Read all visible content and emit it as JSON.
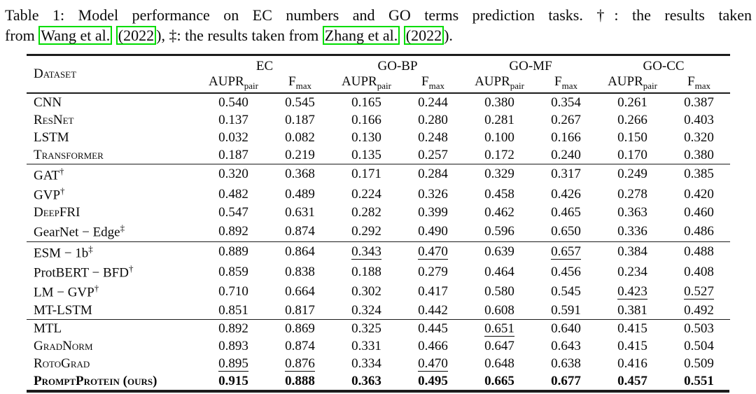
{
  "caption": {
    "line1": "Table 1: Model performance on EC numbers and GO terms prediction tasks. †: the results taken",
    "line2_pre": "from ",
    "cite1": "Wang et al.",
    "cite1_year": "(2022",
    "line2_mid": "), ‡: the results taken from ",
    "cite2": "Zhang et al.",
    "cite2_year": "(2022",
    "line2_end": ")."
  },
  "table": {
    "dataset_header": "Dataset",
    "col_groups": [
      {
        "label": "EC"
      },
      {
        "label": "GO-BP"
      },
      {
        "label": "GO-MF"
      },
      {
        "label": "GO-CC"
      }
    ],
    "metrics": {
      "aupr": "AUPR",
      "aupr_sub": "pair",
      "fmax": "F",
      "fmax_sub": "max"
    },
    "groups": [
      {
        "rows": [
          {
            "label": "CNN",
            "sc": true,
            "sup": "",
            "bold": false,
            "underline": [],
            "values": [
              "0.540",
              "0.545",
              "0.165",
              "0.244",
              "0.380",
              "0.354",
              "0.261",
              "0.387"
            ]
          },
          {
            "label": "ResNet",
            "sc": true,
            "sup": "",
            "bold": false,
            "underline": [],
            "values": [
              "0.137",
              "0.187",
              "0.166",
              "0.280",
              "0.281",
              "0.267",
              "0.266",
              "0.403"
            ]
          },
          {
            "label": "LSTM",
            "sc": true,
            "sup": "",
            "bold": false,
            "underline": [],
            "values": [
              "0.032",
              "0.082",
              "0.130",
              "0.248",
              "0.100",
              "0.166",
              "0.150",
              "0.320"
            ]
          },
          {
            "label": "Transformer",
            "sc": true,
            "sup": "",
            "bold": false,
            "underline": [],
            "values": [
              "0.187",
              "0.219",
              "0.135",
              "0.257",
              "0.172",
              "0.240",
              "0.170",
              "0.380"
            ]
          }
        ]
      },
      {
        "rows": [
          {
            "label": "GAT",
            "sc": false,
            "sup": "†",
            "bold": false,
            "underline": [],
            "values": [
              "0.320",
              "0.368",
              "0.171",
              "0.284",
              "0.329",
              "0.317",
              "0.249",
              "0.385"
            ]
          },
          {
            "label": "GVP",
            "sc": false,
            "sup": "†",
            "bold": false,
            "underline": [],
            "values": [
              "0.482",
              "0.489",
              "0.224",
              "0.326",
              "0.458",
              "0.426",
              "0.278",
              "0.420"
            ]
          },
          {
            "label": "DeepFRI",
            "sc": true,
            "sup": "",
            "bold": false,
            "underline": [],
            "values": [
              "0.547",
              "0.631",
              "0.282",
              "0.399",
              "0.462",
              "0.465",
              "0.363",
              "0.460"
            ]
          },
          {
            "label": "GearNet − Edge",
            "sc": false,
            "sup": "‡",
            "bold": false,
            "underline": [],
            "values": [
              "0.892",
              "0.874",
              "0.292",
              "0.490",
              "0.596",
              "0.650",
              "0.336",
              "0.486"
            ]
          }
        ]
      },
      {
        "rows": [
          {
            "label": "ESM − 1b",
            "sc": false,
            "sup": "‡",
            "bold": false,
            "underline": [
              2,
              3,
              5
            ],
            "values": [
              "0.889",
              "0.864",
              "0.343",
              "0.470",
              "0.639",
              "0.657",
              "0.384",
              "0.488"
            ]
          },
          {
            "label": "ProtBERT − BFD",
            "sc": false,
            "sup": "†",
            "bold": false,
            "underline": [],
            "values": [
              "0.859",
              "0.838",
              "0.188",
              "0.279",
              "0.464",
              "0.456",
              "0.234",
              "0.408"
            ]
          },
          {
            "label": "LM − GVP",
            "sc": false,
            "sup": "†",
            "bold": false,
            "underline": [
              6,
              7
            ],
            "values": [
              "0.710",
              "0.664",
              "0.302",
              "0.417",
              "0.580",
              "0.545",
              "0.423",
              "0.527"
            ]
          },
          {
            "label": "MT-LSTM",
            "sc": true,
            "sup": "",
            "bold": false,
            "underline": [],
            "values": [
              "0.851",
              "0.817",
              "0.324",
              "0.442",
              "0.608",
              "0.591",
              "0.381",
              "0.492"
            ]
          }
        ]
      },
      {
        "rows": [
          {
            "label": "MTL",
            "sc": true,
            "sup": "",
            "bold": false,
            "underline": [
              4
            ],
            "values": [
              "0.892",
              "0.869",
              "0.325",
              "0.445",
              "0.651",
              "0.640",
              "0.415",
              "0.503"
            ]
          },
          {
            "label": "GradNorm",
            "sc": true,
            "sup": "",
            "bold": false,
            "underline": [],
            "values": [
              "0.893",
              "0.874",
              "0.331",
              "0.466",
              "0.647",
              "0.643",
              "0.415",
              "0.504"
            ]
          },
          {
            "label": "RotoGrad",
            "sc": true,
            "sup": "",
            "bold": false,
            "underline": [
              0,
              1,
              3
            ],
            "values": [
              "0.895",
              "0.876",
              "0.334",
              "0.470",
              "0.648",
              "0.638",
              "0.416",
              "0.509"
            ]
          },
          {
            "label": "PromptProtein (ours)",
            "sc": true,
            "sup": "",
            "bold": true,
            "underline": [],
            "values": [
              "0.915",
              "0.888",
              "0.363",
              "0.495",
              "0.665",
              "0.677",
              "0.457",
              "0.551"
            ]
          }
        ]
      }
    ],
    "accent_link_color": "#00dd00"
  }
}
